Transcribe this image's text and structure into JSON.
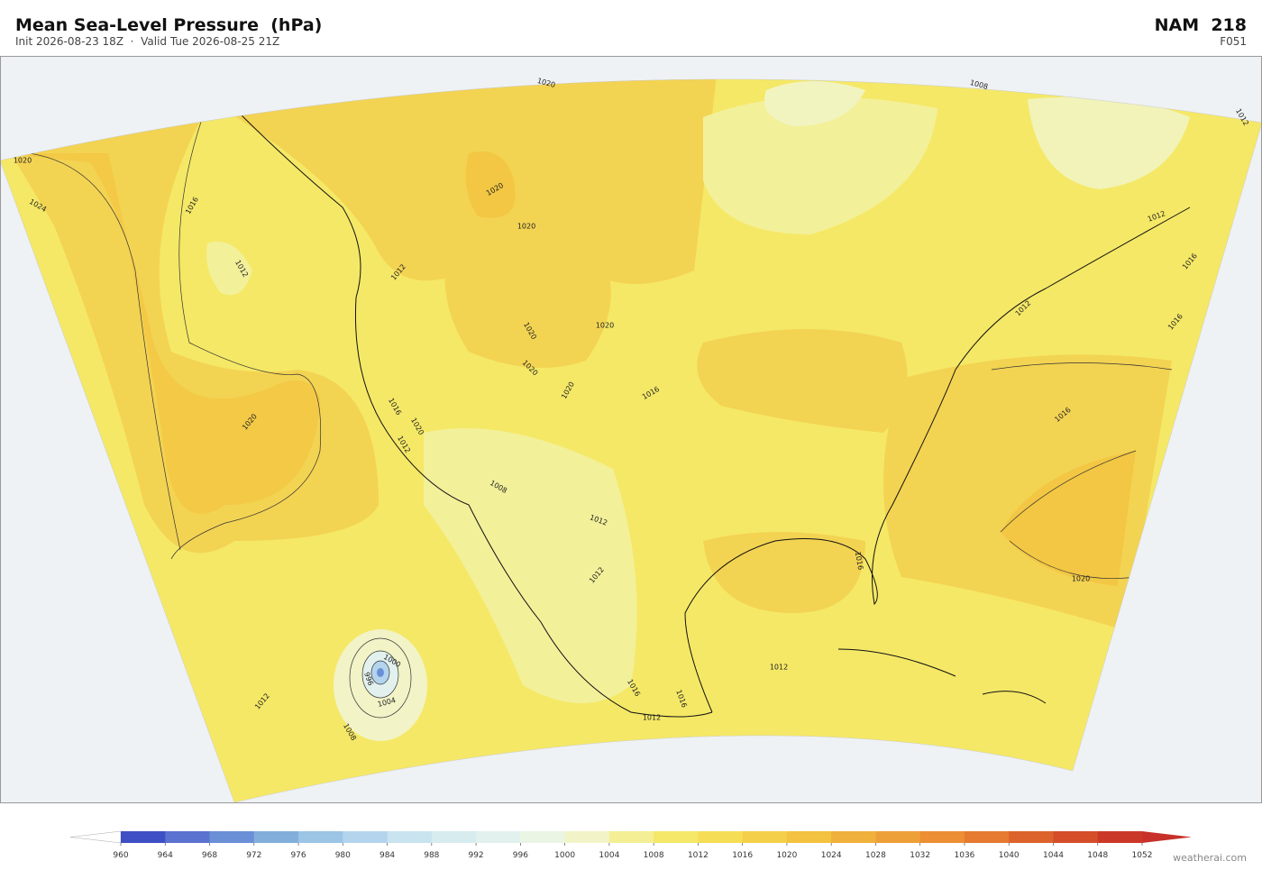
{
  "header": {
    "title": "Mean Sea-Level Pressure  (hPa)",
    "subtitle": "Init 2026-08-23 18Z  ·  Valid Tue 2026-08-25 21Z",
    "model": "NAM  218",
    "forecast_hour": "F051"
  },
  "contour_labels": [
    1020,
    1024,
    1016,
    1012,
    1020,
    1020,
    1020,
    1020,
    1012,
    1020,
    1020,
    1020,
    1020,
    1016,
    1016,
    1020,
    1012,
    1008,
    1012,
    1012,
    1016,
    1012,
    1016,
    1012,
    1016,
    1020,
    1016,
    1016,
    1016,
    1012,
    1012,
    1008,
    1012,
    1000,
    996,
    1004,
    1008,
    1012
  ],
  "colorbar": {
    "ticks": [
      960,
      964,
      968,
      972,
      976,
      980,
      984,
      988,
      992,
      996,
      1000,
      1004,
      1008,
      1012,
      1016,
      1020,
      1024,
      1028,
      1032,
      1036,
      1040,
      1044,
      1048,
      1052
    ],
    "colors": [
      "#3f4fc4",
      "#5b72d0",
      "#6b8fd6",
      "#82aedc",
      "#9cc4e5",
      "#b3d4ec",
      "#c9e3ef",
      "#d7ecef",
      "#e2f1ed",
      "#ebf5e4",
      "#f2f3c6",
      "#f4ef95",
      "#f5e768",
      "#f5de55",
      "#f4d04a",
      "#f3c240",
      "#f0b03c",
      "#eea038",
      "#ec8e34",
      "#e57a30",
      "#dc642c",
      "#d44e2a",
      "#cc3828"
    ],
    "under_color": "#ffffff",
    "over_color": "#c8302a"
  },
  "watermark": "weatherai.com"
}
